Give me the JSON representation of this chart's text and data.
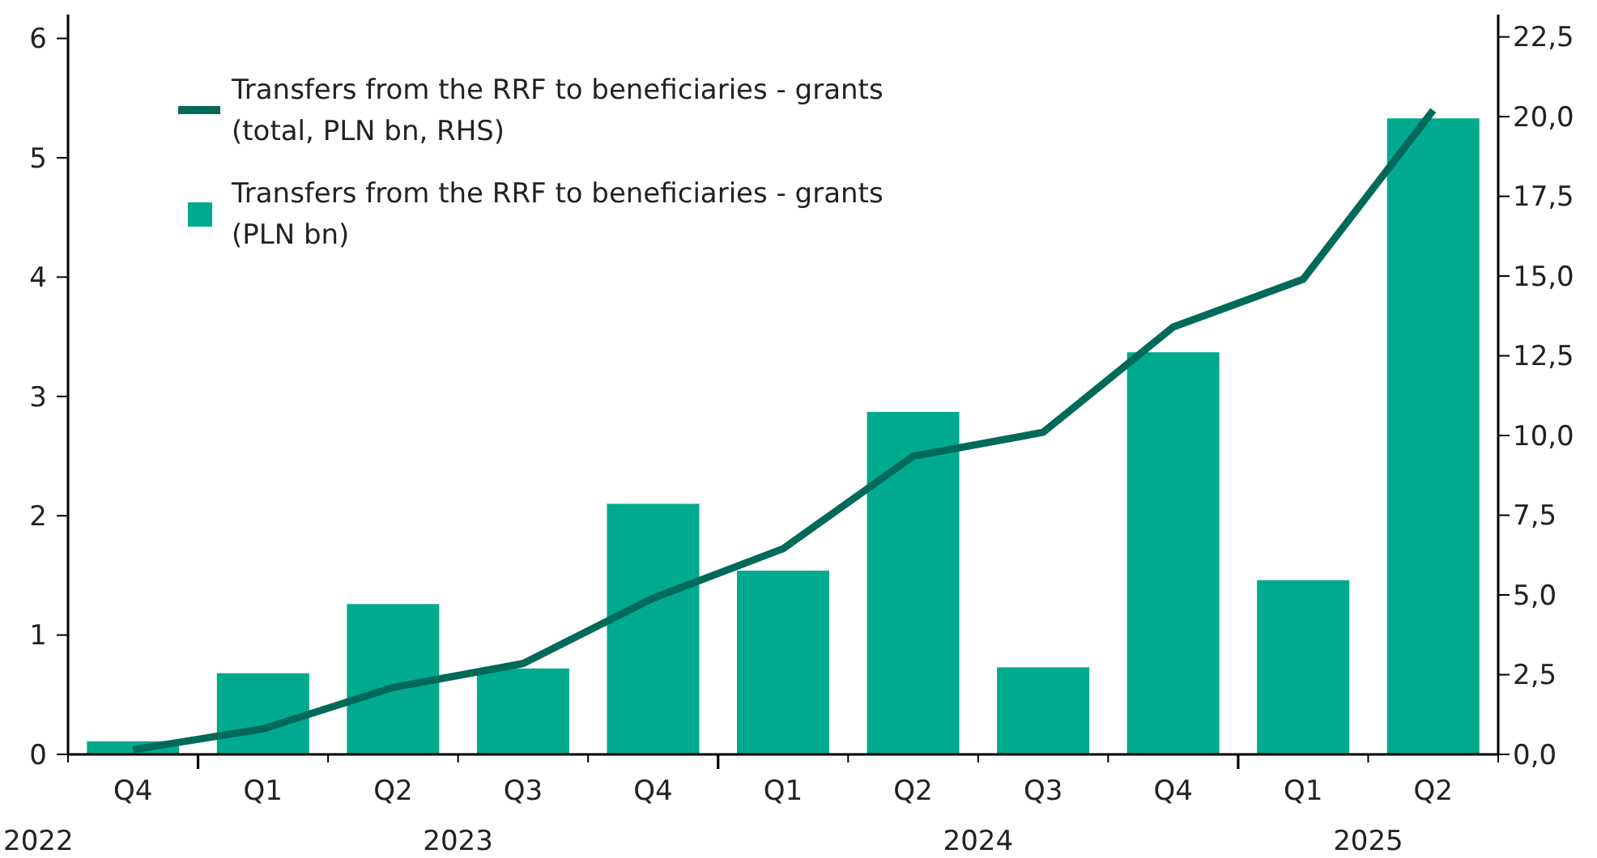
{
  "chart_data": {
    "type": "bar",
    "categories": [
      "Q4",
      "Q1",
      "Q2",
      "Q3",
      "Q4",
      "Q1",
      "Q2",
      "Q3",
      "Q4",
      "Q1",
      "Q2"
    ],
    "series": [
      {
        "name": "Transfers from the RRF to beneficiaries - grants (total, PLN bn, RHS)",
        "type": "line",
        "axis": "y2",
        "color": "#006a5a",
        "values": [
          0.15,
          0.8,
          2.1,
          2.85,
          4.9,
          6.45,
          9.35,
          10.1,
          13.4,
          14.9,
          20.2
        ]
      },
      {
        "name": "Transfers from the RRF to beneficiaries - grants (PLN bn)",
        "color": "#00aa8e",
        "values": [
          0.11,
          0.68,
          1.26,
          0.72,
          2.1,
          1.54,
          2.87,
          0.73,
          3.37,
          1.46,
          5.33
        ]
      }
    ],
    "ylim": [
      0,
      6.2
    ],
    "yticks": [
      0,
      1,
      2,
      3,
      4,
      5,
      6
    ],
    "y2lim": [
      0,
      23.2
    ],
    "y2ticks": [
      {
        "value": 0,
        "label": "0,0"
      },
      {
        "value": 2.5,
        "label": "2,5"
      },
      {
        "value": 5,
        "label": "5,0"
      },
      {
        "value": 7.5,
        "label": "7,5"
      },
      {
        "value": 10,
        "label": "10,0"
      },
      {
        "value": 12.5,
        "label": "12,5"
      },
      {
        "value": 15,
        "label": "15,0"
      },
      {
        "value": 17.5,
        "label": "17,5"
      },
      {
        "value": 20,
        "label": "20,0"
      },
      {
        "value": 22.5,
        "label": "22,5"
      }
    ],
    "annotations": [
      "2022",
      "2023",
      "2024",
      "2025"
    ],
    "legend": "top left",
    "grid": false
  }
}
